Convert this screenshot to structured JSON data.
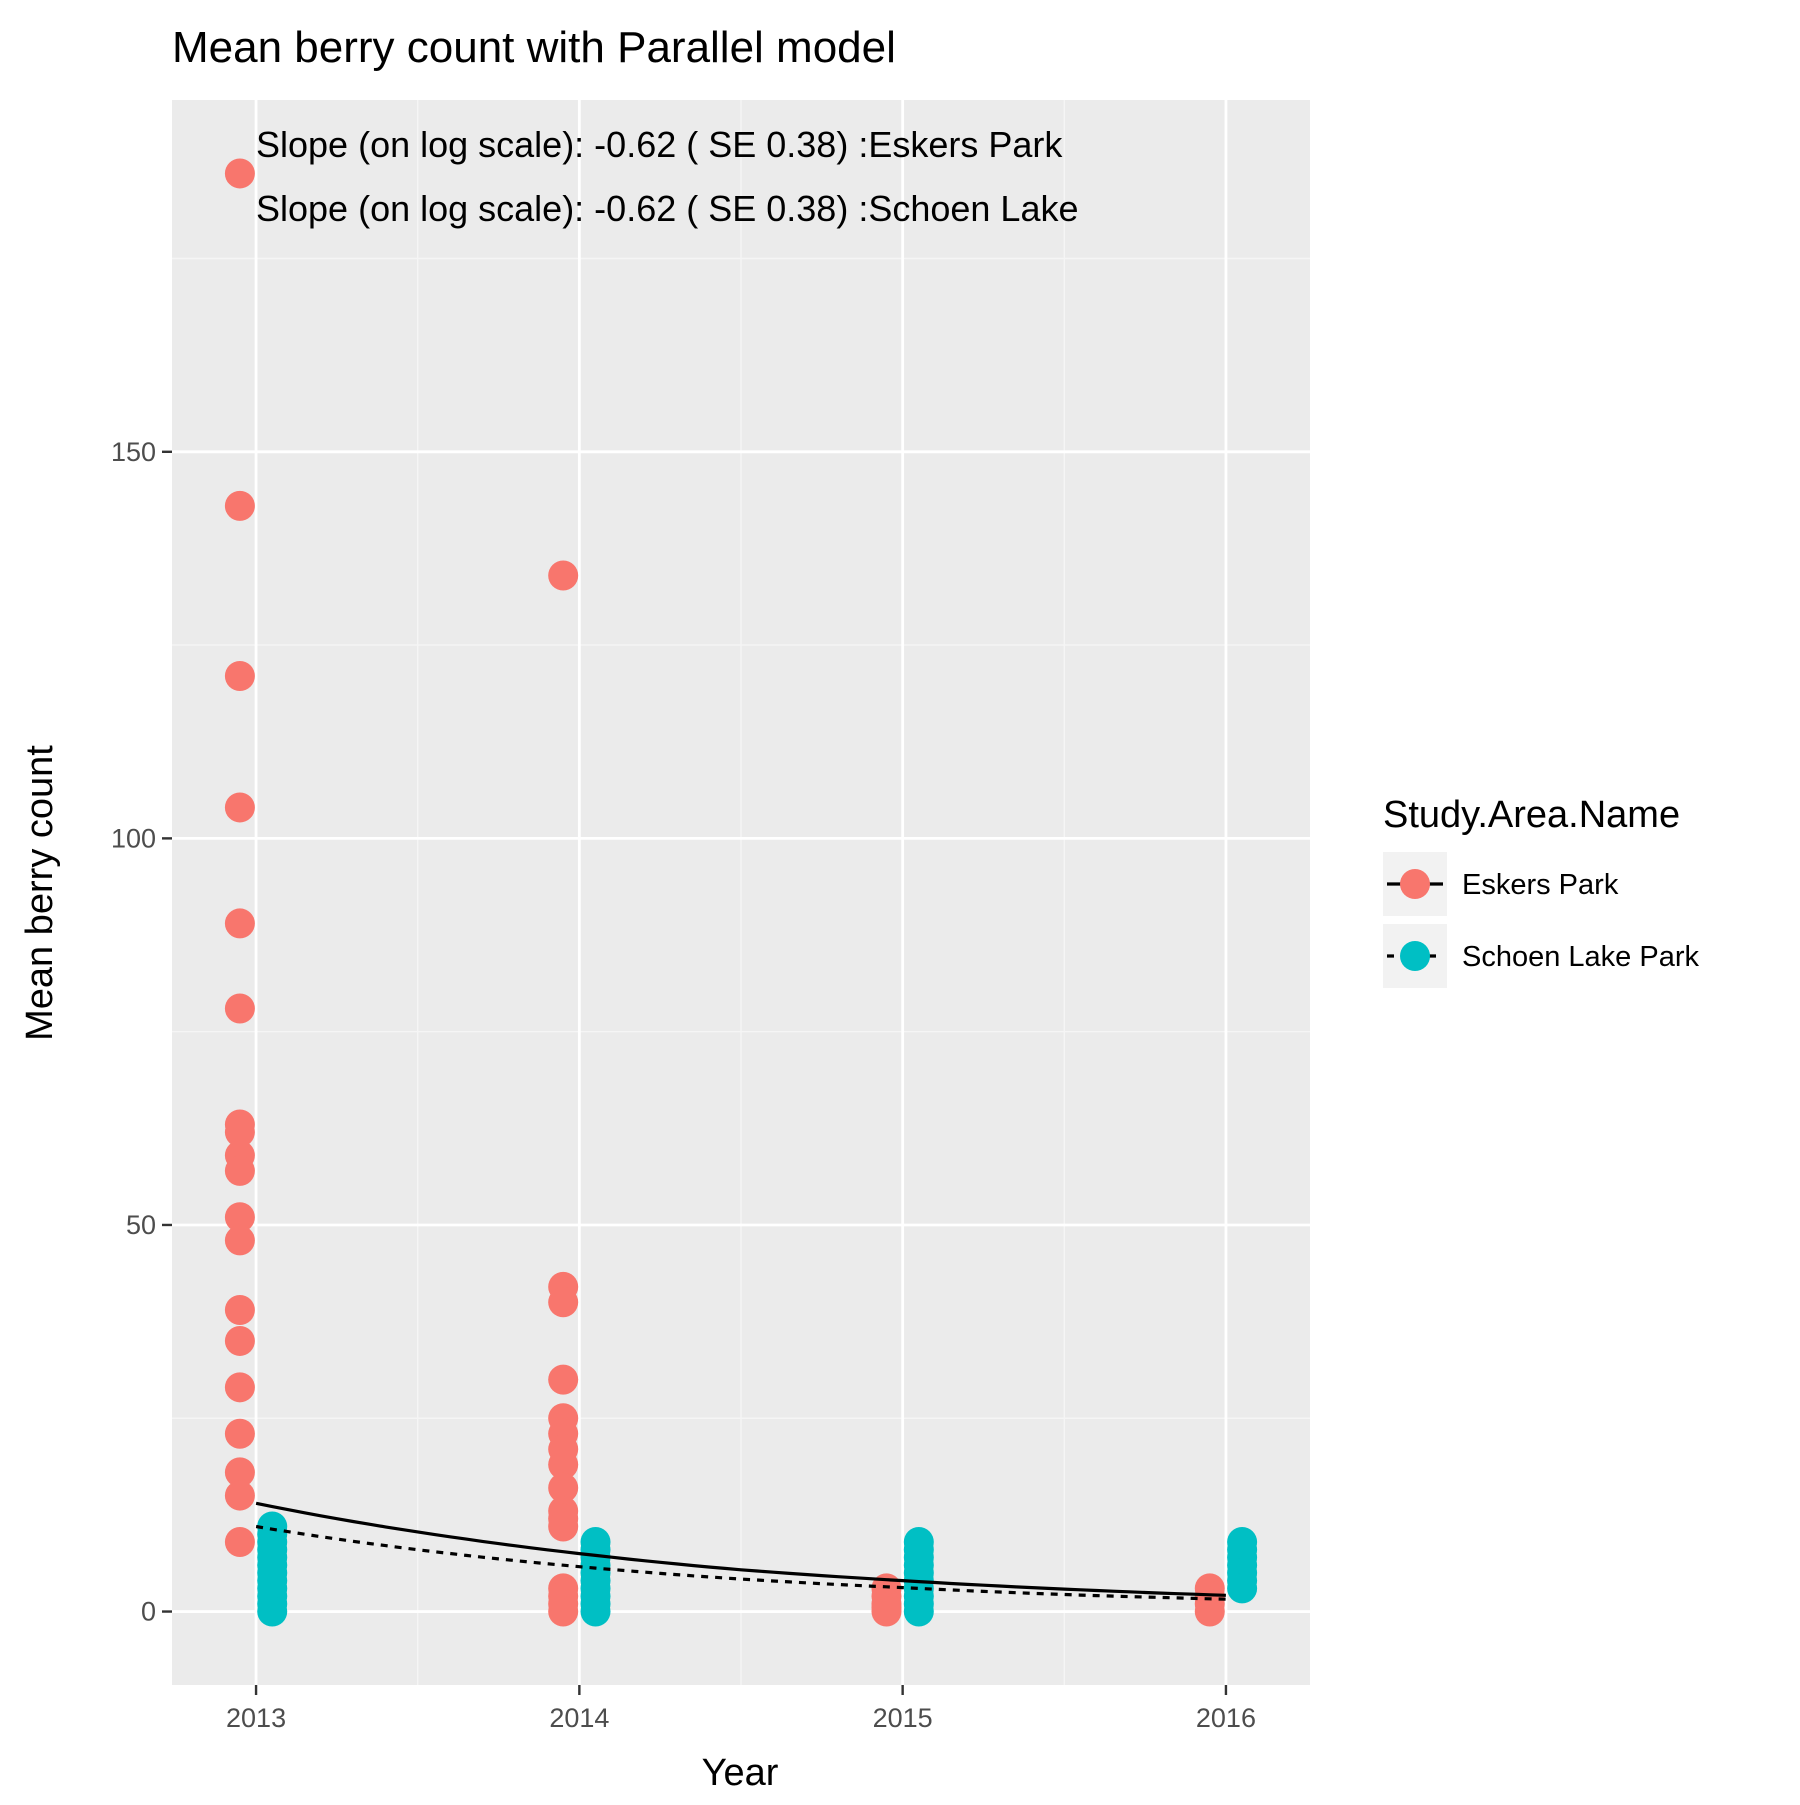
{
  "chart_data": {
    "type": "scatter",
    "title": "Mean berry count with  Parallel model",
    "xlabel": "Year",
    "ylabel": "Mean berry count",
    "xlim": [
      2012.74,
      2016.26
    ],
    "ylim": [
      -9.5,
      195.5
    ],
    "x_ticks": [
      2013,
      2014,
      2015,
      2016
    ],
    "y_ticks": [
      0,
      50,
      100,
      150
    ],
    "grid": true,
    "legend": {
      "title": "Study.Area.Name",
      "position": "right"
    },
    "annotations": [
      "Slope (on log scale): -0.62 ( SE 0.38) :Eskers Park",
      "Slope (on log scale): -0.62 ( SE 0.38) :Schoen Lake"
    ],
    "series": [
      {
        "name": "Eskers Park",
        "color": "#F8766D",
        "line_style": "solid",
        "x_offset": -0.05,
        "points": [
          {
            "x": 2013,
            "y": 186
          },
          {
            "x": 2013,
            "y": 143
          },
          {
            "x": 2013,
            "y": 121
          },
          {
            "x": 2013,
            "y": 104
          },
          {
            "x": 2013,
            "y": 89
          },
          {
            "x": 2013,
            "y": 78
          },
          {
            "x": 2013,
            "y": 63
          },
          {
            "x": 2013,
            "y": 62
          },
          {
            "x": 2013,
            "y": 59
          },
          {
            "x": 2013,
            "y": 57
          },
          {
            "x": 2013,
            "y": 51
          },
          {
            "x": 2013,
            "y": 48
          },
          {
            "x": 2013,
            "y": 39
          },
          {
            "x": 2013,
            "y": 35
          },
          {
            "x": 2013,
            "y": 29
          },
          {
            "x": 2013,
            "y": 23
          },
          {
            "x": 2013,
            "y": 18
          },
          {
            "x": 2013,
            "y": 15
          },
          {
            "x": 2013,
            "y": 9
          },
          {
            "x": 2014,
            "y": 134
          },
          {
            "x": 2014,
            "y": 42
          },
          {
            "x": 2014,
            "y": 40
          },
          {
            "x": 2014,
            "y": 30
          },
          {
            "x": 2014,
            "y": 25
          },
          {
            "x": 2014,
            "y": 23
          },
          {
            "x": 2014,
            "y": 21
          },
          {
            "x": 2014,
            "y": 19
          },
          {
            "x": 2014,
            "y": 16
          },
          {
            "x": 2014,
            "y": 13
          },
          {
            "x": 2014,
            "y": 12
          },
          {
            "x": 2014,
            "y": 11
          },
          {
            "x": 2014,
            "y": 3
          },
          {
            "x": 2014,
            "y": 2
          },
          {
            "x": 2014,
            "y": 1
          },
          {
            "x": 2014,
            "y": 0
          },
          {
            "x": 2015,
            "y": 3
          },
          {
            "x": 2015,
            "y": 2
          },
          {
            "x": 2015,
            "y": 1
          },
          {
            "x": 2015,
            "y": 0.5
          },
          {
            "x": 2015,
            "y": 0
          },
          {
            "x": 2016,
            "y": 3
          },
          {
            "x": 2016,
            "y": 2
          },
          {
            "x": 2016,
            "y": 1
          },
          {
            "x": 2016,
            "y": 0
          }
        ],
        "fit": [
          {
            "x": 2013,
            "y": 14
          },
          {
            "x": 2013.5,
            "y": 10.3
          },
          {
            "x": 2014,
            "y": 7.5
          },
          {
            "x": 2014.5,
            "y": 5.4
          },
          {
            "x": 2015,
            "y": 4.0
          },
          {
            "x": 2015.5,
            "y": 2.9
          },
          {
            "x": 2016,
            "y": 2.1
          }
        ]
      },
      {
        "name": "Schoen Lake Park",
        "color": "#00BFC4",
        "line_style": "dashed",
        "x_offset": 0.05,
        "points": [
          {
            "x": 2013,
            "y": 11
          },
          {
            "x": 2013,
            "y": 10
          },
          {
            "x": 2013,
            "y": 9
          },
          {
            "x": 2013,
            "y": 8
          },
          {
            "x": 2013,
            "y": 7
          },
          {
            "x": 2013,
            "y": 6
          },
          {
            "x": 2013,
            "y": 5
          },
          {
            "x": 2013,
            "y": 4
          },
          {
            "x": 2013,
            "y": 3
          },
          {
            "x": 2013,
            "y": 2
          },
          {
            "x": 2013,
            "y": 1
          },
          {
            "x": 2013,
            "y": 0
          },
          {
            "x": 2014,
            "y": 9
          },
          {
            "x": 2014,
            "y": 8
          },
          {
            "x": 2014,
            "y": 7
          },
          {
            "x": 2014,
            "y": 6
          },
          {
            "x": 2014,
            "y": 5
          },
          {
            "x": 2014,
            "y": 4
          },
          {
            "x": 2014,
            "y": 3
          },
          {
            "x": 2014,
            "y": 2
          },
          {
            "x": 2014,
            "y": 1
          },
          {
            "x": 2014,
            "y": 0
          },
          {
            "x": 2015,
            "y": 9
          },
          {
            "x": 2015,
            "y": 8
          },
          {
            "x": 2015,
            "y": 7
          },
          {
            "x": 2015,
            "y": 6
          },
          {
            "x": 2015,
            "y": 5
          },
          {
            "x": 2015,
            "y": 4
          },
          {
            "x": 2015,
            "y": 3
          },
          {
            "x": 2015,
            "y": 2
          },
          {
            "x": 2015,
            "y": 1
          },
          {
            "x": 2015,
            "y": 0
          },
          {
            "x": 2016,
            "y": 9
          },
          {
            "x": 2016,
            "y": 8
          },
          {
            "x": 2016,
            "y": 7
          },
          {
            "x": 2016,
            "y": 6
          },
          {
            "x": 2016,
            "y": 5
          },
          {
            "x": 2016,
            "y": 4
          },
          {
            "x": 2016,
            "y": 3
          }
        ],
        "fit": [
          {
            "x": 2013,
            "y": 11
          },
          {
            "x": 2013.5,
            "y": 8.0
          },
          {
            "x": 2014,
            "y": 5.8
          },
          {
            "x": 2014.5,
            "y": 4.2
          },
          {
            "x": 2015,
            "y": 3.1
          },
          {
            "x": 2015.5,
            "y": 2.2
          },
          {
            "x": 2016,
            "y": 1.6
          }
        ]
      }
    ]
  }
}
